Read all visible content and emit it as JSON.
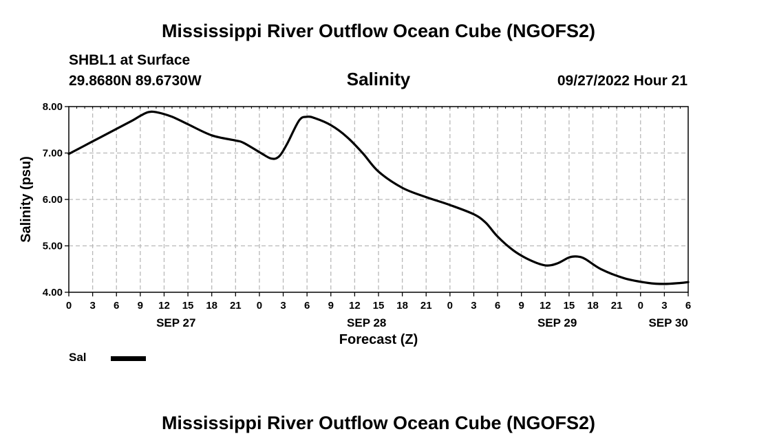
{
  "header": {
    "title": "Mississippi River Outflow Ocean Cube (NGOFS2)",
    "station": "SHBL1 at Surface",
    "coordinates": "29.8680N  89.6730W",
    "variable": "Salinity",
    "datetime": "09/27/2022 Hour 21"
  },
  "footer": {
    "title": "Mississippi River Outflow Ocean Cube (NGOFS2)"
  },
  "legend": {
    "label": "Sal",
    "color": "#000000"
  },
  "chart_data": {
    "type": "line",
    "title": "Salinity",
    "xlabel": "Forecast (Z)",
    "ylabel": "Salinity (psu)",
    "xlim": [
      0,
      78
    ],
    "ylim": [
      4.0,
      8.0
    ],
    "x_unit": "hours since SEP 27 00Z",
    "grid": true,
    "legend_position": "bottom-left",
    "yticks": [
      {
        "value": 4.0,
        "label": "4.00"
      },
      {
        "value": 5.0,
        "label": "5.00"
      },
      {
        "value": 6.0,
        "label": "6.00"
      },
      {
        "value": 7.0,
        "label": "7.00"
      },
      {
        "value": 8.0,
        "label": "8.00"
      }
    ],
    "xticks": [
      {
        "value": 0,
        "label": "0"
      },
      {
        "value": 3,
        "label": "3"
      },
      {
        "value": 6,
        "label": "6"
      },
      {
        "value": 9,
        "label": "9"
      },
      {
        "value": 12,
        "label": "12"
      },
      {
        "value": 15,
        "label": "15"
      },
      {
        "value": 18,
        "label": "18"
      },
      {
        "value": 21,
        "label": "21"
      },
      {
        "value": 24,
        "label": "0"
      },
      {
        "value": 27,
        "label": "3"
      },
      {
        "value": 30,
        "label": "6"
      },
      {
        "value": 33,
        "label": "9"
      },
      {
        "value": 36,
        "label": "12"
      },
      {
        "value": 39,
        "label": "15"
      },
      {
        "value": 42,
        "label": "18"
      },
      {
        "value": 45,
        "label": "21"
      },
      {
        "value": 48,
        "label": "0"
      },
      {
        "value": 51,
        "label": "3"
      },
      {
        "value": 54,
        "label": "6"
      },
      {
        "value": 57,
        "label": "9"
      },
      {
        "value": 60,
        "label": "12"
      },
      {
        "value": 63,
        "label": "15"
      },
      {
        "value": 66,
        "label": "18"
      },
      {
        "value": 69,
        "label": "21"
      },
      {
        "value": 72,
        "label": "0"
      },
      {
        "value": 75,
        "label": "3"
      },
      {
        "value": 78,
        "label": "6"
      }
    ],
    "date_labels": [
      {
        "value": 13.5,
        "label": "SEP 27"
      },
      {
        "value": 37.5,
        "label": "SEP 28"
      },
      {
        "value": 61.5,
        "label": "SEP 29"
      },
      {
        "value": 75.5,
        "label": "SEP 30"
      }
    ],
    "series": [
      {
        "name": "Sal",
        "x": [
          0,
          3,
          6,
          8,
          9,
          10,
          11,
          13,
          15,
          18,
          21,
          22,
          24,
          25.5,
          26.5,
          27.5,
          29,
          30,
          31,
          33,
          35,
          37,
          39,
          42,
          45,
          48,
          51,
          52.5,
          54,
          56,
          58,
          60,
          61.5,
          63,
          64,
          65,
          67,
          70,
          73,
          75,
          77,
          78
        ],
        "values": [
          6.98,
          7.25,
          7.52,
          7.7,
          7.8,
          7.88,
          7.88,
          7.78,
          7.62,
          7.38,
          7.27,
          7.22,
          7.02,
          6.88,
          6.93,
          7.2,
          7.7,
          7.78,
          7.75,
          7.6,
          7.35,
          7.0,
          6.6,
          6.25,
          6.05,
          5.88,
          5.68,
          5.5,
          5.2,
          4.9,
          4.7,
          4.58,
          4.62,
          4.75,
          4.77,
          4.72,
          4.5,
          4.3,
          4.2,
          4.18,
          4.2,
          4.22
        ]
      }
    ]
  }
}
